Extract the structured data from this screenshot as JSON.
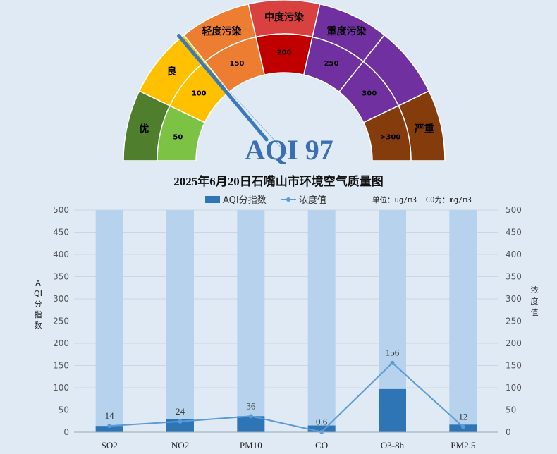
{
  "gauge": {
    "bands": [
      {
        "label": "优",
        "tick": "50",
        "outer_color": "#4f7f2c",
        "inner_color": "#7cc244"
      },
      {
        "label": "良",
        "tick": "100",
        "outer_color": "#ffc000",
        "inner_color": "#ffc000"
      },
      {
        "label": "轻度污染",
        "tick": "150",
        "outer_color": "#ed7d31",
        "inner_color": "#ed7d31"
      },
      {
        "label": "中度污染",
        "tick": "200",
        "outer_color": "#d94040",
        "inner_color": "#c00000"
      },
      {
        "label": "重度污染",
        "tick": "250",
        "outer_color": "#7030a0",
        "inner_color": "#7030a0"
      },
      {
        "label": "",
        "tick": "300",
        "outer_color": "#7030a0",
        "inner_color": "#7030a0"
      },
      {
        "label": "严重",
        "tick": ">300",
        "outer_color": "#843c0c",
        "inner_color": "#843c0c"
      }
    ],
    "needle_value": 97,
    "needle_color": "#3a7ab8",
    "aqi_label": "AQI 97"
  },
  "chart_data": {
    "type": "bar",
    "title": "2025年6月20日石嘴山市环境空气质量图",
    "categories": [
      "SO2",
      "NO2",
      "PM10",
      "CO",
      "O3-8h",
      "PM2.5"
    ],
    "series": [
      {
        "name": "AQI分指数",
        "type": "bar",
        "axis": "left",
        "color": "#2e75b6",
        "values": [
          14,
          30,
          36,
          15,
          97,
          17
        ]
      },
      {
        "name": "浓度值",
        "type": "line",
        "axis": "right",
        "color": "#5b9bd5",
        "values": [
          14,
          24,
          36,
          0.6,
          156,
          12
        ],
        "labels": [
          "14",
          "24",
          "36",
          "0.6",
          "156",
          "12"
        ]
      }
    ],
    "background_bar_color": "#b7d2ec",
    "ylim": [
      0,
      500
    ],
    "y_ticks": [
      0,
      50,
      100,
      150,
      200,
      250,
      300,
      350,
      400,
      450,
      500
    ],
    "y2lim": [
      0,
      500
    ],
    "y2_ticks": [
      0,
      50,
      100,
      150,
      200,
      250,
      300,
      350,
      400,
      450,
      500
    ],
    "ylabel": "AQI分指数",
    "y2label": "浓度值",
    "unit_note": "单位：ug/m3  CO为：mg/m3",
    "legend_position": "top-center",
    "grid": true
  }
}
